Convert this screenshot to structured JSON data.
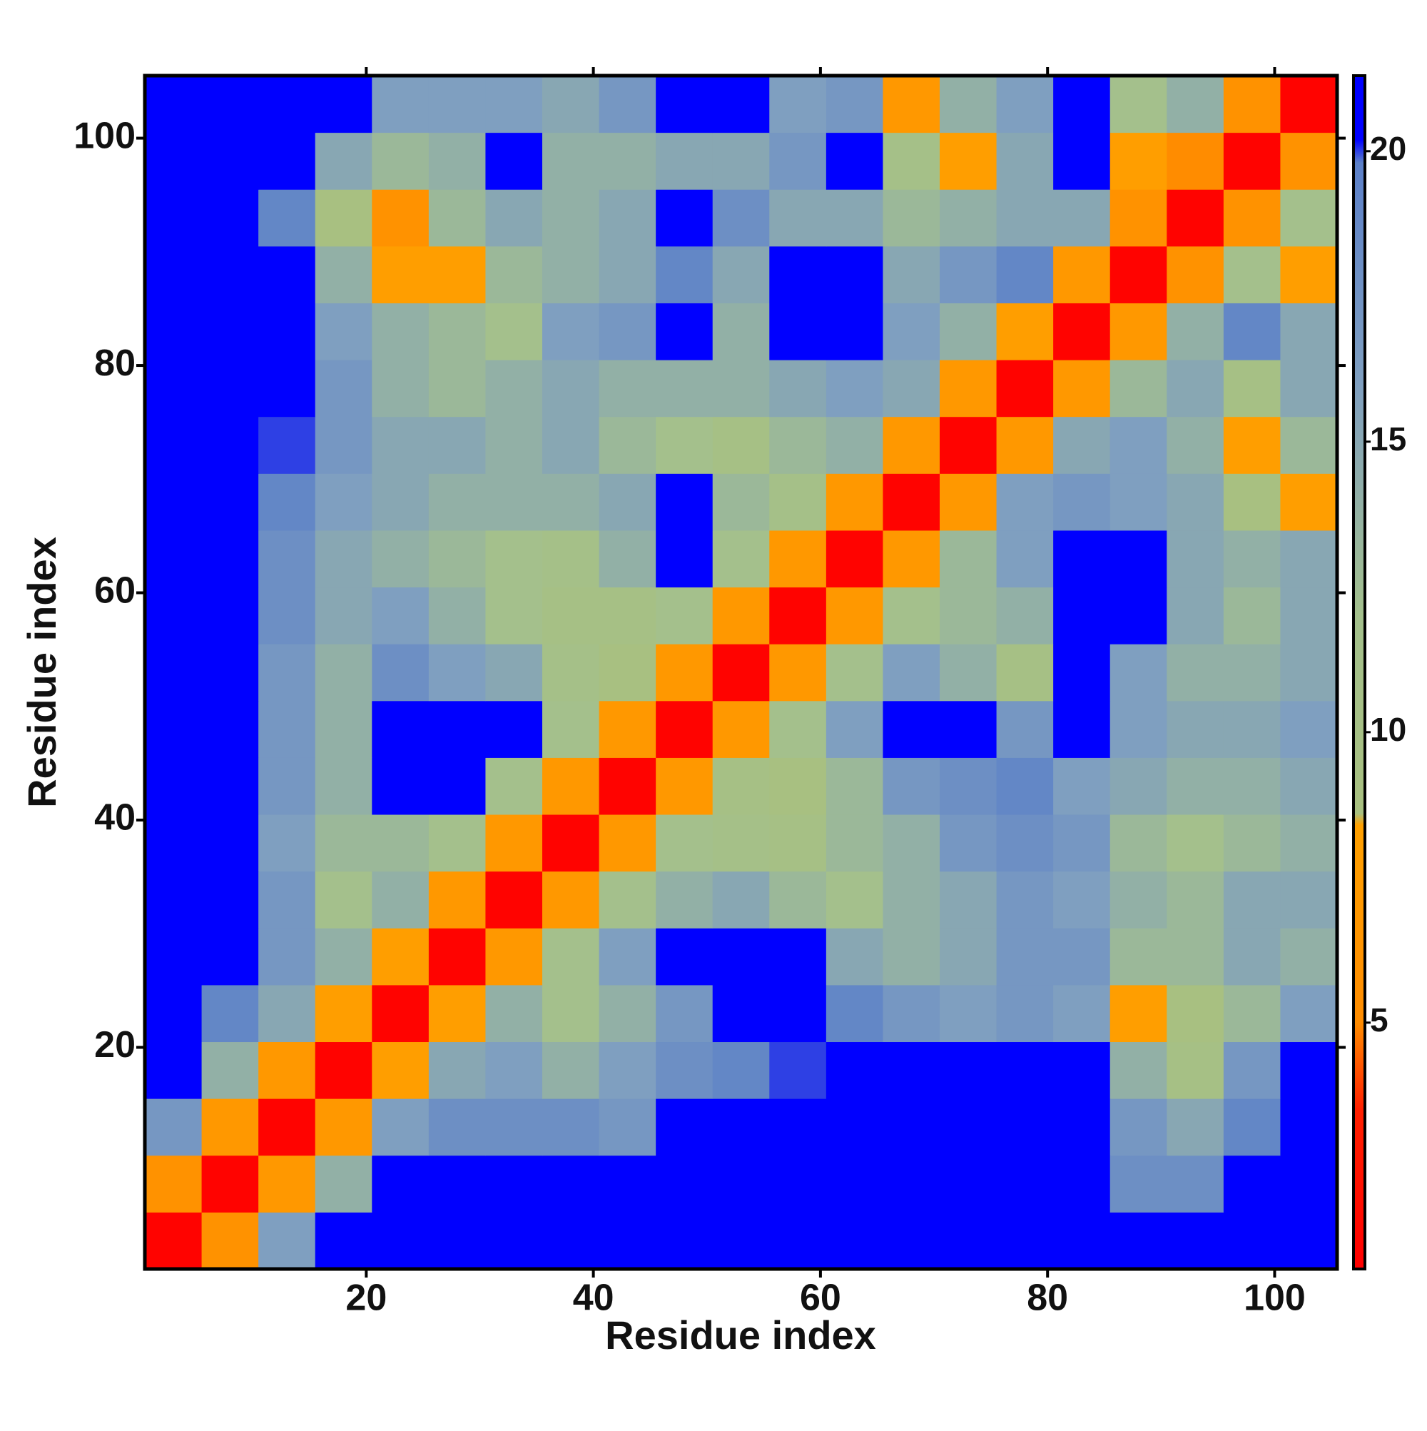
{
  "chart_data": {
    "type": "heatmap",
    "x_label": "Residue index",
    "y_label": "Residue index",
    "x": [
      3,
      8,
      13,
      18,
      23,
      28,
      33,
      38,
      43,
      48,
      53,
      58,
      63,
      68,
      73,
      78,
      83,
      88,
      93,
      98,
      103
    ],
    "y": [
      3,
      8,
      13,
      18,
      23,
      28,
      33,
      38,
      43,
      48,
      53,
      58,
      63,
      68,
      73,
      78,
      83,
      88,
      93,
      98,
      103
    ],
    "values": [
      [
        1,
        6,
        16,
        21,
        21,
        21,
        21,
        21,
        21,
        21,
        21,
        21,
        21,
        21,
        21,
        21,
        21,
        21,
        21,
        21,
        21
      ],
      [
        6,
        1,
        7,
        14,
        21,
        21,
        21,
        21,
        21,
        21,
        21,
        21,
        21,
        21,
        21,
        21,
        21,
        18,
        18,
        21,
        21
      ],
      [
        17,
        7,
        1,
        7,
        16,
        18,
        18,
        18,
        17,
        21,
        21,
        21,
        21,
        21,
        21,
        21,
        21,
        17,
        15,
        19,
        21
      ],
      [
        21,
        14,
        7,
        1,
        8,
        15,
        16,
        14,
        16,
        18,
        19,
        20,
        21,
        21,
        21,
        21,
        21,
        14,
        10,
        17,
        21
      ],
      [
        21,
        19,
        15,
        8,
        1,
        8,
        14,
        12,
        14,
        17,
        21,
        21,
        19,
        17,
        16,
        17,
        16,
        8,
        9,
        13,
        16
      ],
      [
        21,
        21,
        17,
        14,
        8,
        1,
        7,
        12,
        16,
        21,
        21,
        21,
        15,
        14,
        15,
        17,
        17,
        13,
        13,
        15,
        14
      ],
      [
        21,
        21,
        17,
        12,
        14,
        7,
        1,
        7,
        12,
        14,
        15,
        13,
        12,
        14,
        15,
        17,
        16,
        14,
        13,
        15,
        15
      ],
      [
        21,
        21,
        16,
        13,
        13,
        12,
        7,
        1,
        7,
        12,
        11,
        10,
        13,
        14,
        17,
        18,
        17,
        13,
        12,
        13,
        14
      ],
      [
        21,
        21,
        17,
        14,
        21,
        21,
        12,
        7,
        1,
        7,
        10,
        9,
        13,
        17,
        18,
        19,
        16,
        15,
        14,
        14,
        15
      ],
      [
        21,
        21,
        17,
        14,
        21,
        21,
        21,
        12,
        7,
        1,
        7,
        12,
        16,
        21,
        21,
        17,
        21,
        16,
        15,
        15,
        16
      ],
      [
        21,
        21,
        17,
        14,
        18,
        16,
        15,
        11,
        9,
        7,
        1,
        7,
        12,
        16,
        14,
        10,
        21,
        16,
        14,
        14,
        15
      ],
      [
        21,
        21,
        18,
        15,
        16,
        14,
        12,
        10,
        10,
        12,
        7,
        1,
        7,
        12,
        13,
        14,
        21,
        21,
        15,
        13,
        15
      ],
      [
        21,
        21,
        18,
        15,
        14,
        13,
        12,
        11,
        14,
        21,
        12,
        7,
        1,
        7,
        13,
        16,
        21,
        21,
        15,
        14,
        15
      ],
      [
        21,
        21,
        19,
        16,
        15,
        14,
        14,
        14,
        15,
        21,
        13,
        11,
        7,
        1,
        7,
        16,
        17,
        16,
        15,
        9,
        8
      ],
      [
        21,
        21,
        20,
        17,
        15,
        15,
        14,
        15,
        13,
        12,
        10,
        13,
        14,
        7,
        1,
        7,
        15,
        16,
        14,
        8,
        13
      ],
      [
        21,
        21,
        21,
        17,
        14,
        13,
        14,
        15,
        14,
        14,
        14,
        15,
        16,
        15,
        7,
        1,
        7,
        13,
        15,
        10,
        15
      ],
      [
        21,
        21,
        21,
        16,
        14,
        13,
        12,
        16,
        17,
        21,
        14,
        21,
        21,
        16,
        14,
        8,
        1,
        7,
        14,
        19,
        15
      ],
      [
        21,
        21,
        21,
        14,
        8,
        8,
        13,
        14,
        15,
        19,
        15,
        21,
        21,
        15,
        17,
        19,
        7,
        1,
        6,
        12,
        8
      ],
      [
        21,
        21,
        19,
        9,
        6,
        13,
        15,
        14,
        15,
        21,
        18,
        15,
        15,
        13,
        14,
        15,
        15,
        6,
        1,
        6,
        12
      ],
      [
        21,
        21,
        21,
        15,
        13,
        14,
        21,
        14,
        14,
        15,
        15,
        17,
        21,
        11,
        8,
        15,
        21,
        8,
        5,
        1,
        6
      ],
      [
        21,
        21,
        21,
        21,
        16,
        16,
        16,
        15,
        17,
        21,
        21,
        16,
        17,
        7,
        14,
        16,
        21,
        12,
        14,
        6,
        1
      ]
    ],
    "xlim": [
      0.5,
      105.5
    ],
    "ylim": [
      0.5,
      105.5
    ],
    "xticks": [
      20,
      40,
      60,
      80,
      100
    ],
    "yticks": [
      20,
      40,
      60,
      80,
      100
    ],
    "clim": [
      0.76,
      21.3
    ],
    "cticks": [
      5,
      10,
      15,
      20
    ],
    "colorscale": [
      [
        0.76,
        "#ff0000"
      ],
      [
        3.5,
        "#ff2000"
      ],
      [
        5,
        "#ff8c00"
      ],
      [
        8.4,
        "#ffa000"
      ],
      [
        8.6,
        "#a8c080"
      ],
      [
        12,
        "#a4c08c"
      ],
      [
        16,
        "#7f9fc0"
      ],
      [
        19.8,
        "#5c80c8"
      ],
      [
        20.2,
        "#0000ff"
      ],
      [
        21.3,
        "#0000ff"
      ]
    ]
  }
}
